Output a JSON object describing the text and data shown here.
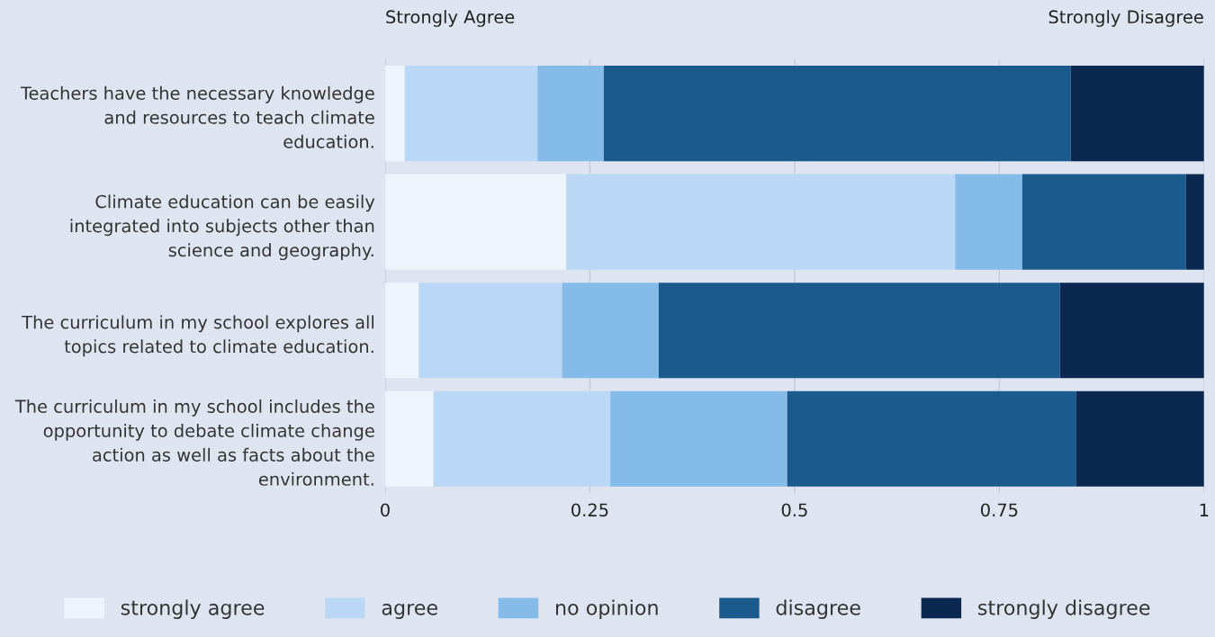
{
  "chart_data": {
    "type": "bar",
    "orientation": "horizontal",
    "stacked": true,
    "categories": [
      "Teachers have the necessary knowledge and resources to teach climate education.",
      "Climate education can be easily integrated into subjects other than science and geography.",
      "The curriculum in my school explores all topics related to climate education.",
      "The curriculum in my school includes the opportunity to debate climate change action as well as facts about the environment."
    ],
    "series": [
      {
        "name": "strongly agree",
        "color": "#edf4fc",
        "values": [
          0.024,
          0.221,
          0.041,
          0.059
        ]
      },
      {
        "name": "agree",
        "color": "#bad8f5",
        "values": [
          0.162,
          0.475,
          0.175,
          0.216
        ]
      },
      {
        "name": "no opinion",
        "color": "#85bbe9",
        "values": [
          0.081,
          0.082,
          0.118,
          0.216
        ]
      },
      {
        "name": "disagree",
        "color": "#1b5a8c",
        "values": [
          0.57,
          0.2,
          0.49,
          0.353
        ]
      },
      {
        "name": "strongly disagree",
        "color": "#0b2850",
        "values": [
          0.163,
          0.022,
          0.176,
          0.156
        ]
      }
    ],
    "xlim": [
      0,
      1
    ],
    "xticks": [
      0,
      {
        "value": 0.25,
        "label": "0.25"
      },
      {
        "value": 0.5,
        "label": "0.5"
      },
      {
        "value": 0.75,
        "label": "0.75"
      },
      1
    ],
    "grid": "x",
    "legend": "bottom",
    "annotations": [
      "Strongly Agree",
      "Strongly Disagree"
    ]
  }
}
